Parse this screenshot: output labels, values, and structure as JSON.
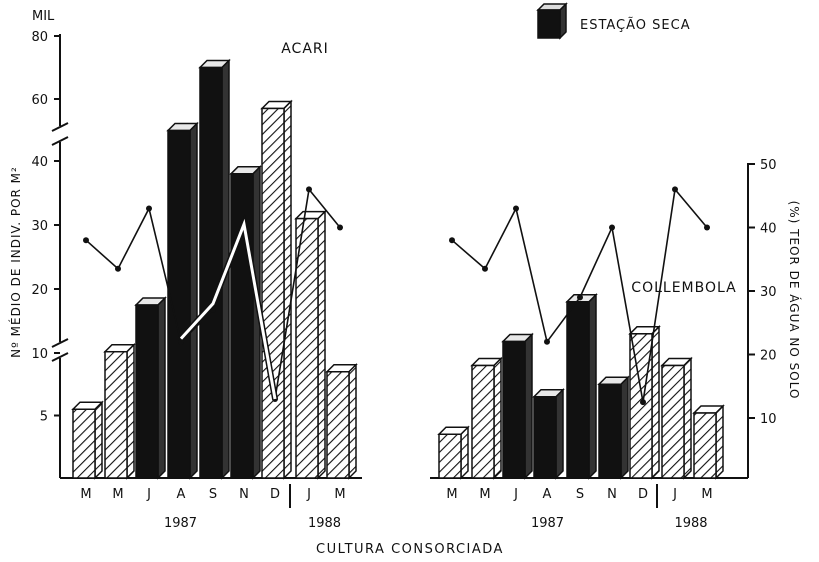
{
  "chart_data": {
    "type": "bar",
    "xlabel": "CULTURA CONSORCIADA",
    "ylabel_left": "Nº MÉDIO DE INDIV. POR M²",
    "ylabel_left_unit": "MIL",
    "ylabel_right": "(%) TEOR DE ÁGUA NO SOLO",
    "legend": {
      "label": "ESTAÇÃO SECA",
      "position": "top-right"
    },
    "left_axis_ticks": [
      "5",
      "10",
      "20",
      "30",
      "40",
      "60",
      "80"
    ],
    "right_axis_ticks": [
      "10",
      "20",
      "30",
      "40",
      "50"
    ],
    "categories": [
      "M",
      "M",
      "J",
      "A",
      "S",
      "N",
      "D",
      "J",
      "M"
    ],
    "years": [
      {
        "label": "1987",
        "span": [
          0,
          6
        ]
      },
      {
        "label": "1988",
        "span": [
          7,
          8
        ]
      }
    ],
    "dry_season": [
      false,
      false,
      true,
      true,
      true,
      true,
      false,
      false,
      false
    ],
    "panels": [
      {
        "title": "ACARI",
        "values": [
          5.5,
          10.2,
          17.5,
          50,
          70,
          38,
          57,
          31,
          8.5
        ],
        "water_content": [
          38,
          33.5,
          43,
          22,
          27,
          40,
          13,
          46,
          40
        ],
        "second_line": [
          null,
          null,
          null,
          22.5,
          28,
          40.5,
          13,
          null,
          null
        ]
      },
      {
        "title": "COLLEMBOLA",
        "values": [
          3.5,
          9,
          11.8,
          6.5,
          18,
          7.5,
          13,
          9,
          5.2
        ],
        "water_content": [
          38,
          33.5,
          43,
          22,
          29,
          40,
          12.5,
          46,
          40
        ]
      }
    ]
  }
}
